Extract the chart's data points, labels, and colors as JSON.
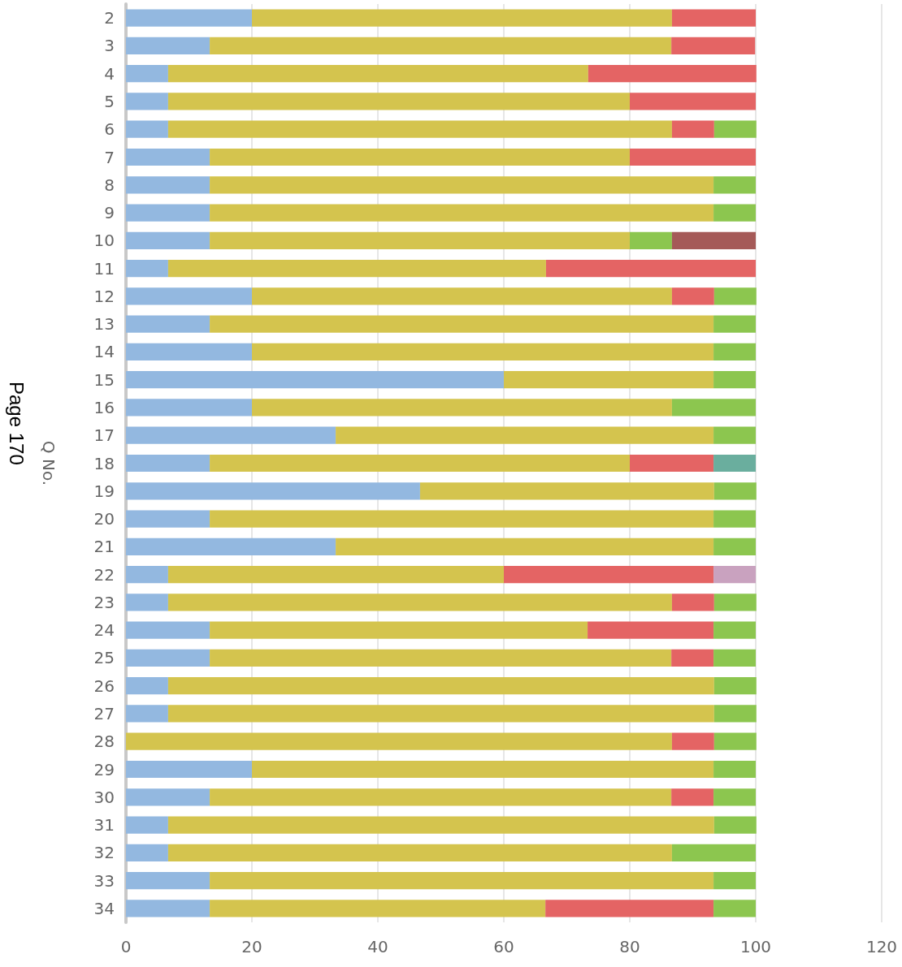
{
  "chart_data": {
    "type": "bar",
    "orientation": "horizontal",
    "stacked": true,
    "ylabel": "Q No.",
    "annotations": [
      "Page 170"
    ],
    "categories": [
      "2",
      "3",
      "4",
      "5",
      "6",
      "7",
      "8",
      "9",
      "10",
      "11",
      "12",
      "13",
      "14",
      "15",
      "16",
      "17",
      "18",
      "19",
      "20",
      "21",
      "22",
      "23",
      "24",
      "25",
      "26",
      "27",
      "28",
      "29",
      "30",
      "31",
      "32",
      "33",
      "34"
    ],
    "series": [
      {
        "color": "#93b8e0",
        "values": [
          20,
          13.3,
          6.7,
          6.7,
          6.7,
          13.3,
          13.3,
          13.3,
          13.3,
          6.7,
          20,
          13.3,
          20,
          60,
          20,
          33.3,
          13.3,
          46.7,
          13.3,
          33.3,
          6.7,
          6.7,
          13.3,
          13.3,
          6.7,
          6.7,
          null,
          20,
          13.3,
          6.7,
          6.7,
          13.3,
          13.3
        ]
      },
      {
        "color": "#d4c44e",
        "values": [
          66.7,
          73.3,
          66.7,
          73.3,
          80,
          66.7,
          80,
          80,
          66.7,
          60,
          66.7,
          80,
          73.3,
          33.3,
          66.7,
          60,
          66.7,
          46.7,
          80,
          60,
          53.3,
          80,
          60,
          73.3,
          86.7,
          86.7,
          86.7,
          73.3,
          73.3,
          86.7,
          80,
          80,
          53.3
        ]
      },
      {
        "color": "#e46464",
        "values": [
          13.3,
          13.3,
          26.7,
          20,
          6.7,
          20,
          null,
          null,
          null,
          33.3,
          6.7,
          null,
          null,
          null,
          null,
          null,
          13.3,
          null,
          null,
          null,
          33.3,
          6.7,
          20,
          6.7,
          null,
          null,
          6.7,
          null,
          6.7,
          null,
          null,
          null,
          26.7
        ]
      },
      {
        "color": "#8cc64f",
        "values": [
          null,
          null,
          null,
          null,
          6.7,
          null,
          6.7,
          6.7,
          6.7,
          null,
          6.7,
          6.7,
          6.7,
          6.7,
          13.3,
          6.7,
          null,
          6.7,
          6.7,
          6.7,
          null,
          6.7,
          6.7,
          6.7,
          6.7,
          6.7,
          6.7,
          6.7,
          6.7,
          6.7,
          13.3,
          6.7,
          6.7
        ]
      },
      {
        "color": "#a55a58",
        "values": [
          null,
          null,
          null,
          null,
          null,
          null,
          null,
          null,
          13.3,
          null,
          null,
          null,
          null,
          null,
          null,
          null,
          null,
          null,
          null,
          null,
          null,
          null,
          null,
          null,
          null,
          null,
          null,
          null,
          null,
          null,
          null,
          null,
          null
        ]
      },
      {
        "color": "#6aae9e",
        "values": [
          null,
          null,
          null,
          null,
          null,
          null,
          null,
          null,
          null,
          null,
          null,
          null,
          null,
          null,
          null,
          null,
          6.7,
          null,
          null,
          null,
          null,
          null,
          null,
          null,
          null,
          null,
          null,
          null,
          null,
          null,
          null,
          null,
          null
        ]
      },
      {
        "color": "#c9a2bf",
        "values": [
          null,
          null,
          null,
          null,
          null,
          null,
          null,
          null,
          null,
          null,
          null,
          null,
          null,
          null,
          null,
          null,
          null,
          null,
          null,
          null,
          6.7,
          null,
          null,
          null,
          null,
          null,
          null,
          null,
          null,
          null,
          null,
          null,
          null
        ]
      }
    ],
    "xlim": [
      0,
      120
    ],
    "xticks": [
      0,
      20,
      40,
      60,
      80,
      100,
      120
    ],
    "grid": "x"
  }
}
